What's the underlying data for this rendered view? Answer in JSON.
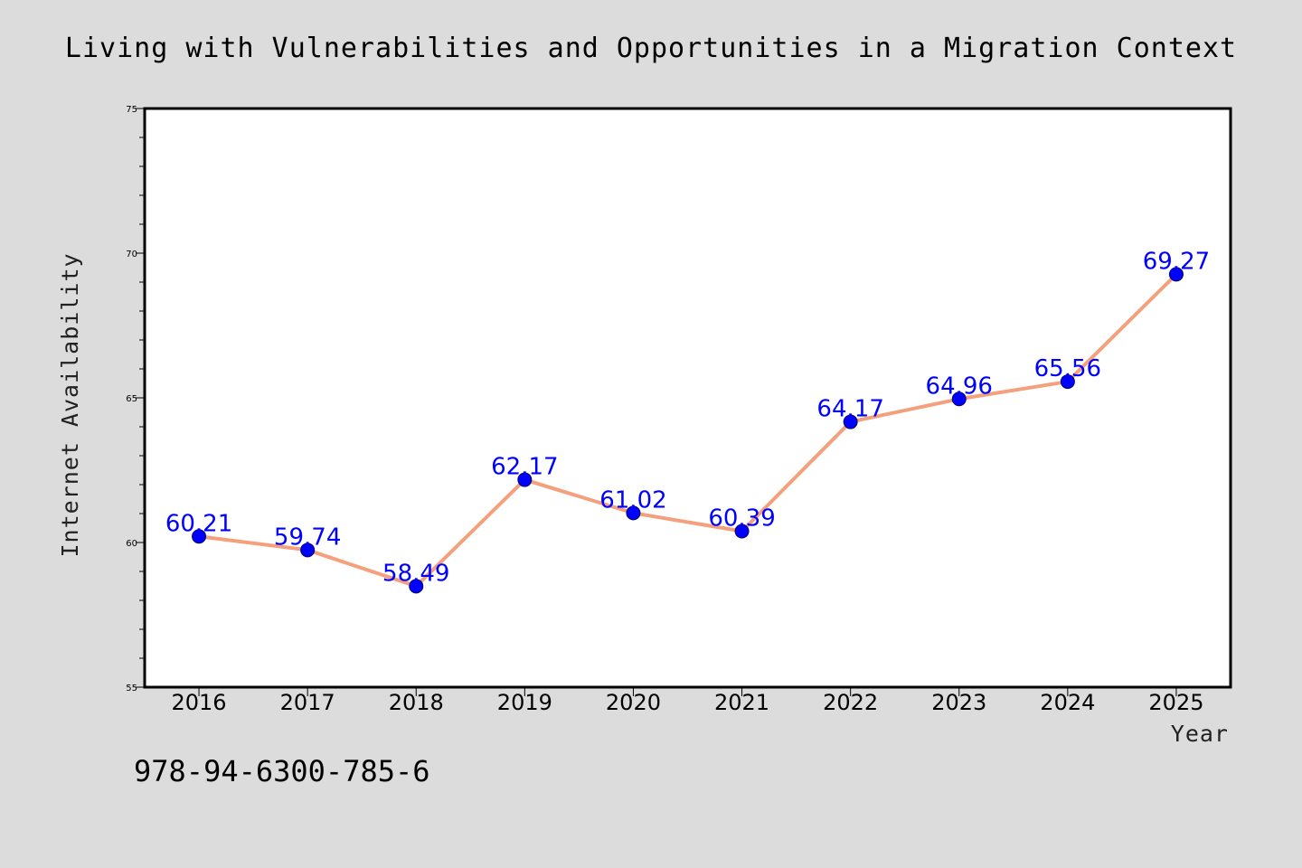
{
  "chart_data": {
    "type": "line",
    "title": "Living with Vulnerabilities and Opportunities in a Migration Context",
    "xlabel": "Year",
    "ylabel": "Internet Availability",
    "categories": [
      "2016",
      "2017",
      "2018",
      "2019",
      "2020",
      "2021",
      "2022",
      "2023",
      "2024",
      "2025"
    ],
    "series": [
      {
        "values": [
          60.21,
          59.74,
          58.49,
          62.17,
          61.02,
          60.39,
          64.17,
          64.96,
          65.56,
          69.27
        ],
        "data_labels": [
          "60.21",
          "59.74",
          "58.49",
          "62.17",
          "61.02",
          "60.39",
          "64.17",
          "64.96",
          "65.56",
          "69.27"
        ],
        "line_color": "#f4a07c",
        "marker_color": "#0000ff"
      }
    ],
    "ylim": [
      55,
      75
    ],
    "yticks": [
      55,
      60,
      65,
      70,
      75
    ],
    "yticks_labels": [
      "55",
      "60",
      "65",
      "70",
      "75"
    ],
    "y_minor_step": 1,
    "grid": false,
    "data_label_color": "#0000ff"
  },
  "footer": {
    "isbn": "978-94-6300-785-6"
  },
  "colors": {
    "background": "#dcdcdc",
    "plot_area": "#ffffff",
    "frame": "#000000"
  }
}
